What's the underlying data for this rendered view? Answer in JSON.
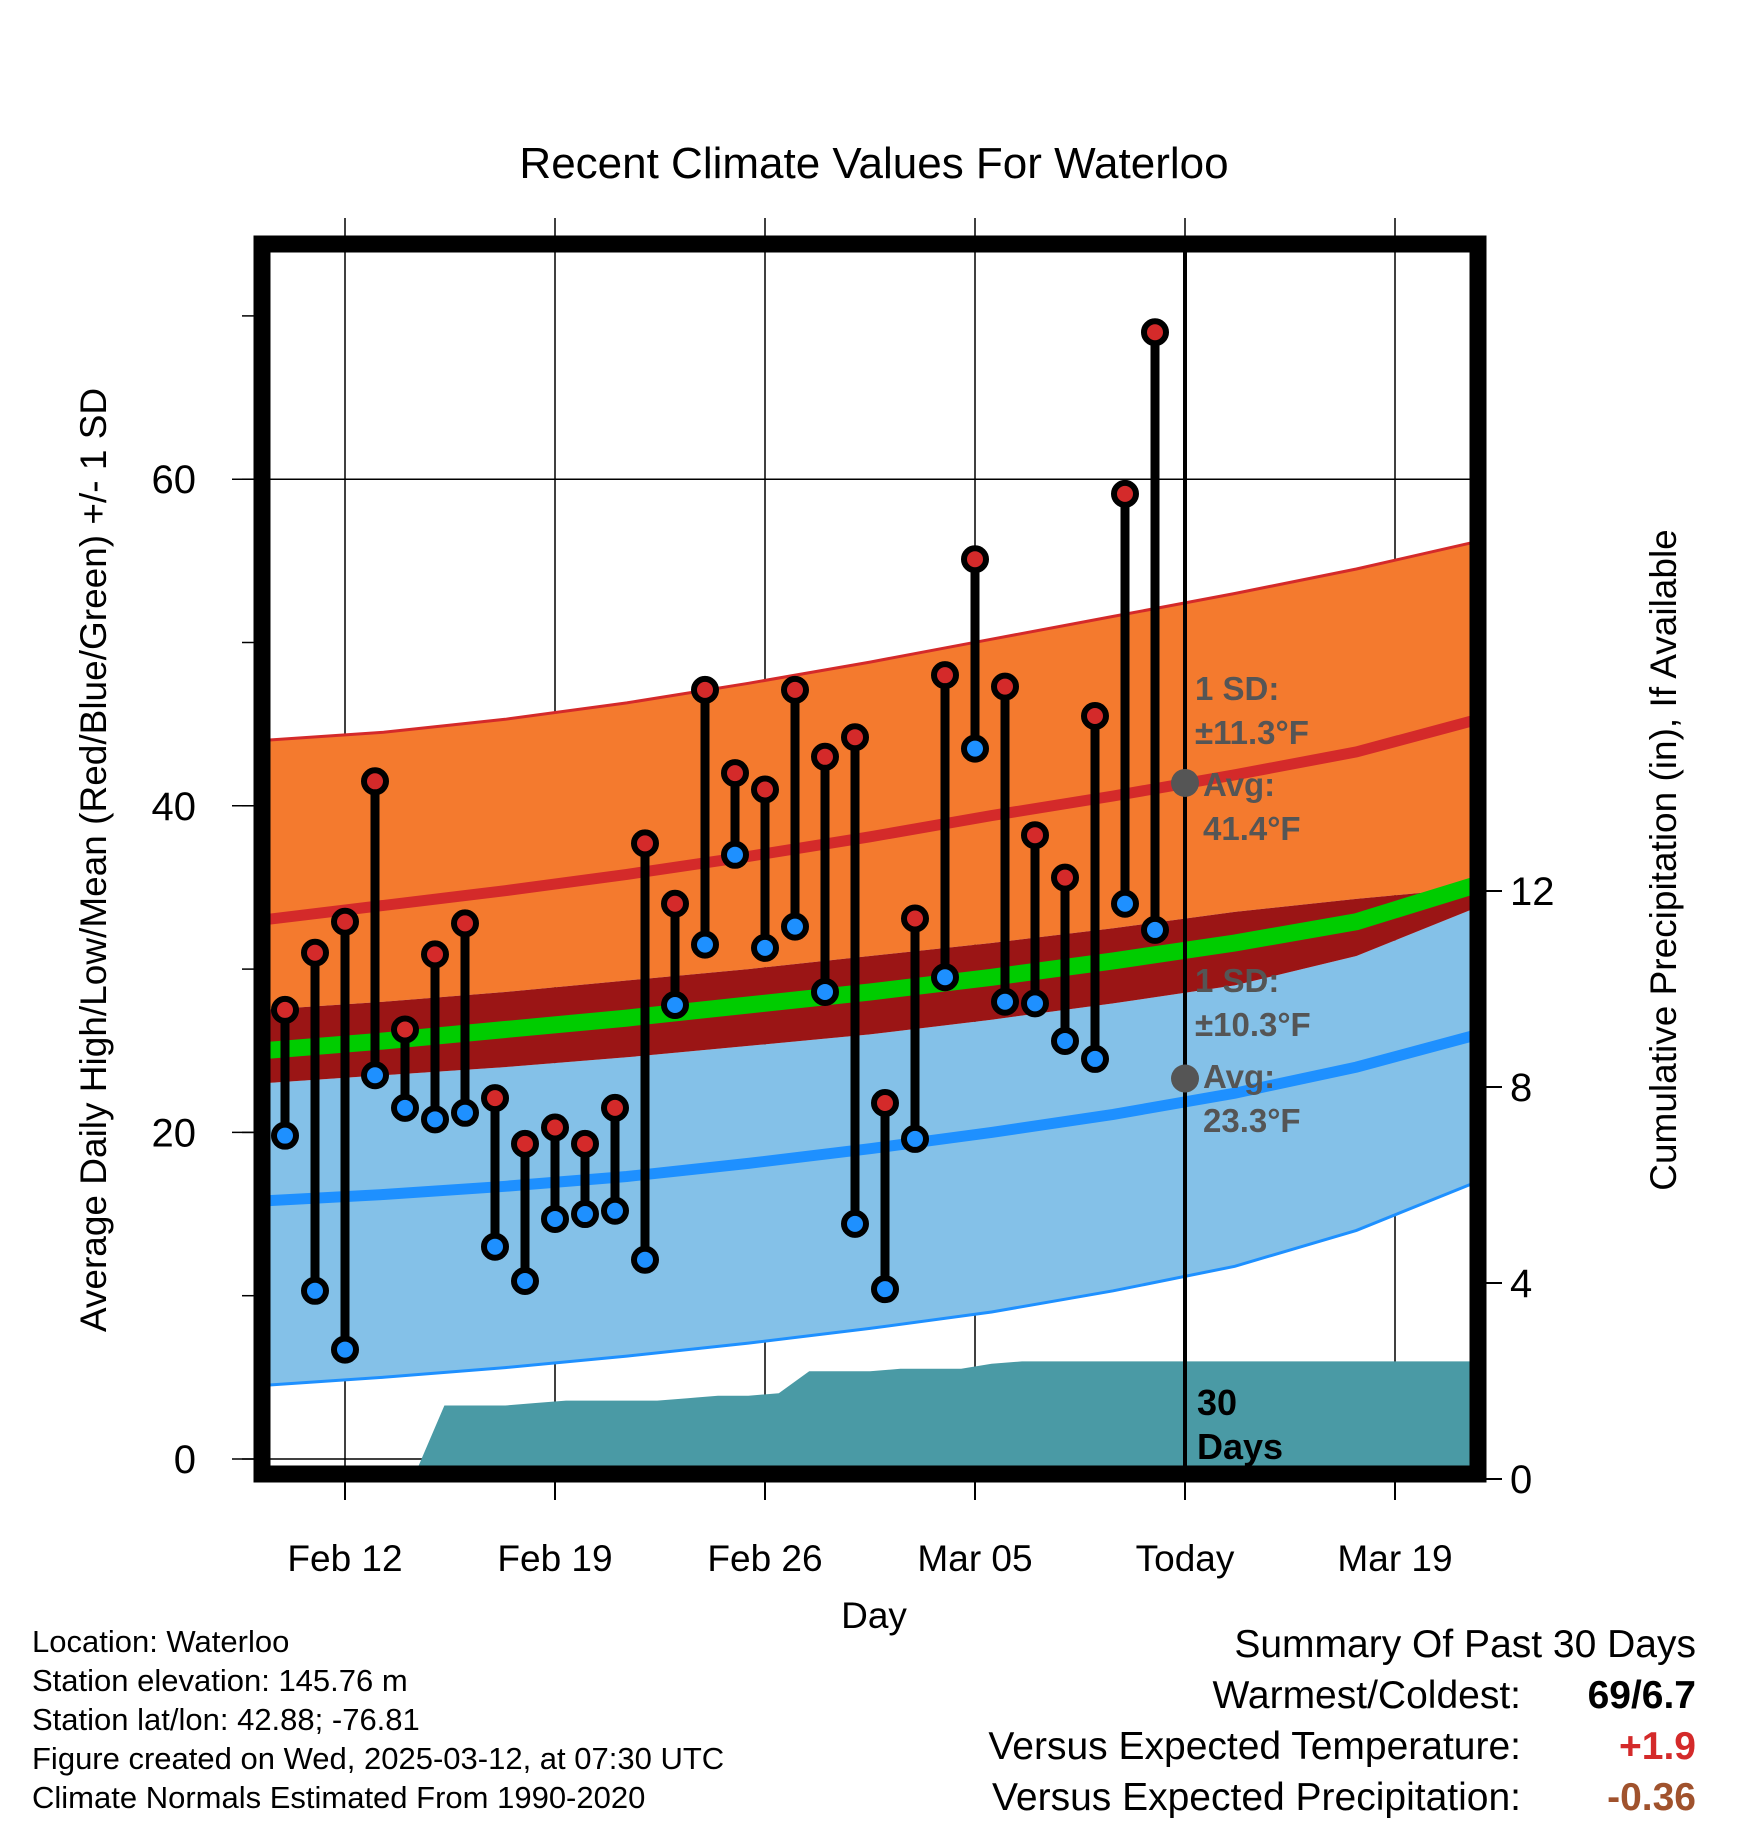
{
  "chart_data": {
    "type": "line",
    "title": "Recent Climate Values For Waterloo",
    "xlabel": "Day",
    "ylabel": "Average Daily High/Low/Mean (Red/Blue/Green) +/- 1 SD",
    "ylabel_right": "Cumulative Precipitation (in), If Available",
    "x_ticks": [
      "Feb 12",
      "Feb 19",
      "Feb 26",
      "Mar 05",
      "Today",
      "Mar 19"
    ],
    "y_ticks": [
      0,
      20,
      40,
      60
    ],
    "y_ticks_right": [
      0,
      4,
      8,
      12
    ],
    "ylim": [
      -0.8,
      74.3
    ],
    "ylim_right": [
      0,
      24
    ],
    "today_label": "30 Days",
    "normals": {
      "high_sd_upper": [
        44.0,
        44.5,
        45.3,
        46.3,
        47.5,
        48.8,
        50.2,
        51.6,
        53.0,
        54.5,
        56.2
      ],
      "high_mean": [
        33.0,
        33.9,
        34.8,
        35.8,
        36.9,
        38.1,
        39.4,
        40.6,
        41.9,
        43.3,
        45.3
      ],
      "high_sd_lower": [
        27.5,
        28.0,
        28.6,
        29.3,
        30.0,
        30.8,
        31.6,
        32.5,
        33.5,
        34.3,
        35.0
      ],
      "mean": [
        25.0,
        25.6,
        26.3,
        27.0,
        27.8,
        28.6,
        29.5,
        30.5,
        31.6,
        32.9,
        35.2
      ],
      "low_sd_upper": [
        23.0,
        23.5,
        24.0,
        24.6,
        25.3,
        26.0,
        26.9,
        27.9,
        29.0,
        30.8,
        33.8
      ],
      "low_mean": [
        15.8,
        16.2,
        16.7,
        17.3,
        18.1,
        19.0,
        20.0,
        21.1,
        22.4,
        24.0,
        26.0
      ],
      "low_sd_lower": [
        4.5,
        5.0,
        5.6,
        6.3,
        7.1,
        8.0,
        9.0,
        10.3,
        11.8,
        14.0,
        17.0
      ]
    },
    "annotations": [
      {
        "sd_title": "1 SD:",
        "sd_value": "±11.3°F",
        "avg_title": "Avg:",
        "avg_value": "41.4°F",
        "y": 41.4
      },
      {
        "sd_title": "1 SD:",
        "sd_value": "±10.3°F",
        "avg_title": "Avg:",
        "avg_value": "23.3°F",
        "y": 23.3
      }
    ],
    "series": [
      {
        "name": "High",
        "color": "#d42a2a",
        "values": [
          27.5,
          31.0,
          32.9,
          41.5,
          26.3,
          30.9,
          32.8,
          22.1,
          19.3,
          20.3,
          19.3,
          21.5,
          37.7,
          34.0,
          47.1,
          42.0,
          41.0,
          47.1,
          43.0,
          44.2,
          21.8,
          33.1,
          48.0,
          55.1,
          47.3,
          38.2,
          35.6,
          45.5,
          59.1,
          69.0
        ]
      },
      {
        "name": "Low",
        "color": "#1e90ff",
        "values": [
          19.8,
          10.3,
          6.7,
          23.5,
          21.5,
          20.8,
          21.2,
          13.0,
          10.9,
          14.7,
          15.0,
          15.2,
          12.2,
          27.8,
          31.5,
          37.0,
          31.3,
          32.6,
          28.6,
          14.4,
          10.4,
          19.6,
          29.5,
          43.5,
          28.0,
          27.9,
          25.6,
          24.5,
          34.0,
          32.4
        ]
      }
    ],
    "precipitation": [
      0,
      0,
      0,
      0,
      0,
      0.05,
      1.5,
      1.5,
      1.5,
      1.55,
      1.6,
      1.6,
      1.6,
      1.6,
      1.65,
      1.7,
      1.7,
      1.75,
      2.2,
      2.2,
      2.2,
      2.25,
      2.25,
      2.25,
      2.35,
      2.4,
      2.4,
      2.4,
      2.4,
      2.4,
      2.4,
      2.4,
      2.4,
      2.4,
      2.4,
      2.4,
      2.4,
      2.4,
      2.4,
      2.4,
      2.4
    ]
  },
  "footer": {
    "location": "Location: Waterloo",
    "elevation": "Station elevation: 145.76 m",
    "latlon": "Station lat/lon: 42.88; -76.81",
    "created": "Figure created on Wed, 2025-03-12, at 07:30 UTC",
    "normals": "Climate Normals Estimated From 1990-2020"
  },
  "summary": {
    "title": "Summary Of Past 30 Days",
    "warmest_label": "Warmest/Coldest:",
    "warmest_value": "69/6.7",
    "temp_label": "Versus Expected Temperature:",
    "temp_value": "+1.9",
    "temp_color": "#d42a2a",
    "precip_label": "Versus Expected Precipitation:",
    "precip_value": "-0.36",
    "precip_color": "#a0522d"
  },
  "colors": {
    "high_band": "#f47a2e",
    "high_line": "#d42a2a",
    "low_band": "#84c1e8",
    "low_line": "#1e90ff",
    "mean_line": "#00cc00",
    "overlap": "#9b1515",
    "precip": "#4a9aa5",
    "marker_stroke": "#000000",
    "annotation": "#555555"
  }
}
